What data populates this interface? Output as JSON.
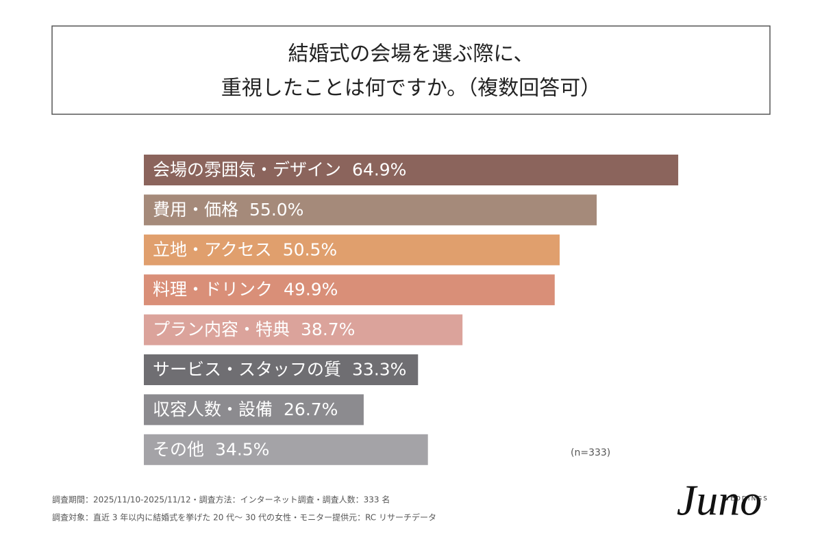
{
  "chart_data": {
    "type": "hbar",
    "title": [
      "結婚式の会場を選ぶ際に、",
      "重視したことは何ですか。（複数回答可）"
    ],
    "categories": [
      "会場の雰囲気・デザイン",
      "費用・価格",
      "立地・アクセス",
      "料理・ドリンク",
      "プラン内容・特典",
      "サービス・スタッフの質",
      "収容人数・設備",
      "その他"
    ],
    "values": [
      64.9,
      55.0,
      50.5,
      49.9,
      38.7,
      33.3,
      26.7,
      34.5
    ],
    "value_labels": [
      "64.9%",
      "55.0%",
      "50.5%",
      "49.9%",
      "38.7%",
      "33.3%",
      "26.7%",
      "34.5%"
    ],
    "colors": [
      "#8b645c",
      "#a58a7a",
      "#e09f6d",
      "#d98f78",
      "#dba39b",
      "#6f6e72",
      "#8c8b8f",
      "#a4a3a7"
    ],
    "note": "(n=333)"
  },
  "footer": [
    "調査期間：2025/11/10-2025/11/12・調査方法：インターネット調査・調査人数：333 名",
    "調査対象：直近 3 年以内に結婚式を挙げた 20 代～ 30 代の女性・モニター提供元：RC リサーチデータ"
  ],
  "logo": {
    "name": "Juno",
    "sub": "WEDDINGS"
  }
}
